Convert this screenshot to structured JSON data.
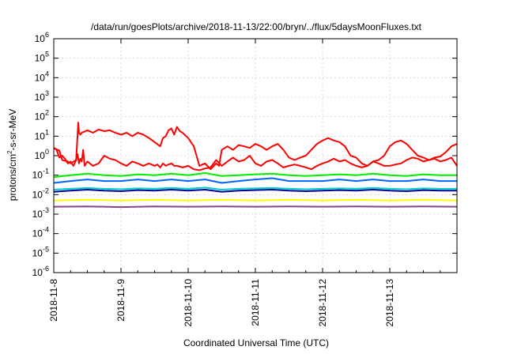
{
  "chart_data": {
    "type": "line",
    "title": "/data/run/goesPlots/archive/2018-11-13/22:00/bryn/../flux/5daysMoonFluxes.txt",
    "xlabel": "Coordinated Universal Time (UTC)",
    "ylabel": {
      "base": "protons/cm",
      "sup": "2",
      "rest": "-s-sr-MeV"
    },
    "y_scale": "log",
    "ylim": [
      1e-06,
      1000000.0
    ],
    "y_ticks": [
      {
        "value": 1e-06,
        "label": "10",
        "exp": "-6"
      },
      {
        "value": 1e-05,
        "label": "10",
        "exp": "-5"
      },
      {
        "value": 0.0001,
        "label": "10",
        "exp": "-4"
      },
      {
        "value": 0.001,
        "label": "10",
        "exp": "-3"
      },
      {
        "value": 0.01,
        "label": "10",
        "exp": "-2"
      },
      {
        "value": 0.1,
        "label": "10",
        "exp": "-1"
      },
      {
        "value": 1,
        "label": "10",
        "exp": "0"
      },
      {
        "value": 10,
        "label": "10",
        "exp": "1"
      },
      {
        "value": 100,
        "label": "10",
        "exp": "2"
      },
      {
        "value": 1000,
        "label": "10",
        "exp": "3"
      },
      {
        "value": 10000,
        "label": "10",
        "exp": "4"
      },
      {
        "value": 100000,
        "label": "10",
        "exp": "5"
      },
      {
        "value": 1000000,
        "label": "10",
        "exp": "6"
      }
    ],
    "xlim": [
      "2018-11-08T00:00",
      "2018-11-14T00:00"
    ],
    "x_ticks": [
      "2018-11-8",
      "2018-11-9",
      "2018-11-10",
      "2018-11-11",
      "2018-11-12",
      "2018-11-13"
    ],
    "grid": true,
    "legend": "none",
    "series": [
      {
        "color": "#ff0000",
        "x": [
          "2018-11-08T00:00",
          "2018-11-08T02:00",
          "2018-11-08T03:00",
          "2018-11-08T05:00",
          "2018-11-08T06:00",
          "2018-11-08T08:00",
          "2018-11-08T08:30",
          "2018-11-08T09:00",
          "2018-11-08T09:30",
          "2018-11-08T10:00",
          "2018-11-08T10:30",
          "2018-11-08T11:00",
          "2018-11-08T12:00",
          "2018-11-08T14:00",
          "2018-11-08T16:00",
          "2018-11-08T18:00",
          "2018-11-08T20:00",
          "2018-11-08T22:00",
          "2018-11-09T00:00",
          "2018-11-09T02:00",
          "2018-11-09T04:00",
          "2018-11-09T06:00",
          "2018-11-09T08:00",
          "2018-11-09T10:00",
          "2018-11-09T12:00",
          "2018-11-09T13:00",
          "2018-11-09T14:00",
          "2018-11-09T15:00",
          "2018-11-09T16:00",
          "2018-11-09T17:00",
          "2018-11-09T18:00",
          "2018-11-09T19:00",
          "2018-11-09T20:00",
          "2018-11-09T22:00",
          "2018-11-10T00:00",
          "2018-11-10T02:00",
          "2018-11-10T04:00",
          "2018-11-10T06:00",
          "2018-11-10T08:00",
          "2018-11-10T10:00",
          "2018-11-10T12:00",
          "2018-11-10T14:00",
          "2018-11-10T16:00",
          "2018-11-10T18:00",
          "2018-11-10T20:00",
          "2018-11-10T22:00",
          "2018-11-11T00:00",
          "2018-11-11T02:00",
          "2018-11-11T04:00",
          "2018-11-11T06:00",
          "2018-11-11T08:00",
          "2018-11-11T10:00",
          "2018-11-11T12:00",
          "2018-11-11T14:00",
          "2018-11-11T16:00",
          "2018-11-11T18:00",
          "2018-11-11T20:00",
          "2018-11-11T22:00",
          "2018-11-12T00:00",
          "2018-11-12T02:00",
          "2018-11-12T04:00",
          "2018-11-12T06:00",
          "2018-11-12T08:00",
          "2018-11-12T10:00",
          "2018-11-12T12:00",
          "2018-11-12T14:00",
          "2018-11-12T16:00",
          "2018-11-12T18:00",
          "2018-11-12T20:00",
          "2018-11-12T22:00",
          "2018-11-13T00:00",
          "2018-11-13T02:00",
          "2018-11-13T04:00",
          "2018-11-13T06:00",
          "2018-11-13T08:00",
          "2018-11-13T10:00",
          "2018-11-13T12:00",
          "2018-11-13T14:00",
          "2018-11-13T16:00",
          "2018-11-13T18:00",
          "2018-11-13T20:00",
          "2018-11-13T22:00",
          "2018-11-14T00:00"
        ],
        "values": [
          2.5,
          1.8,
          0.6,
          0.5,
          0.4,
          0.6,
          1.2,
          0.4,
          0.7,
          0.5,
          2.0,
          0.3,
          0.5,
          0.3,
          0.4,
          1.0,
          0.7,
          0.6,
          0.4,
          0.3,
          0.5,
          0.4,
          0.3,
          0.4,
          0.3,
          0.35,
          0.25,
          0.4,
          0.3,
          0.35,
          0.4,
          0.3,
          0.3,
          0.25,
          0.3,
          0.2,
          0.18,
          0.22,
          0.25,
          0.6,
          0.3,
          0.5,
          0.8,
          0.5,
          0.6,
          1.0,
          0.4,
          0.3,
          0.5,
          0.6,
          0.4,
          0.25,
          0.3,
          0.35,
          0.3,
          0.25,
          0.2,
          0.3,
          0.4,
          0.5,
          0.7,
          0.5,
          0.6,
          0.4,
          0.3,
          0.25,
          0.3,
          0.5,
          0.4,
          0.3,
          0.3,
          0.35,
          0.4,
          0.6,
          0.8,
          0.7,
          0.5,
          0.6,
          0.7,
          0.5,
          0.6,
          0.8,
          0.3
        ]
      },
      {
        "color": "#ff0000",
        "x": [
          "2018-11-08T00:00",
          "2018-11-08T01:00",
          "2018-11-08T02:00",
          "2018-11-08T03:00",
          "2018-11-08T04:00",
          "2018-11-08T05:00",
          "2018-11-08T06:00",
          "2018-11-08T07:00",
          "2018-11-08T08:00",
          "2018-11-08T08:45",
          "2018-11-08T09:00",
          "2018-11-08T09:30",
          "2018-11-08T10:00",
          "2018-11-08T12:00",
          "2018-11-08T14:00",
          "2018-11-08T16:00",
          "2018-11-08T18:00",
          "2018-11-08T20:00",
          "2018-11-08T22:00",
          "2018-11-09T00:00",
          "2018-11-09T02:00",
          "2018-11-09T04:00",
          "2018-11-09T06:00",
          "2018-11-09T08:00",
          "2018-11-09T10:00",
          "2018-11-09T12:00",
          "2018-11-09T14:00",
          "2018-11-09T15:00",
          "2018-11-09T16:00",
          "2018-11-09T17:00",
          "2018-11-09T18:00",
          "2018-11-09T19:00",
          "2018-11-09T20:00",
          "2018-11-09T21:00",
          "2018-11-09T22:00",
          "2018-11-10T00:00",
          "2018-11-10T02:00",
          "2018-11-10T03:00",
          "2018-11-10T04:00",
          "2018-11-10T06:00",
          "2018-11-10T08:00",
          "2018-11-10T10:00",
          "2018-11-10T11:00",
          "2018-11-10T12:00",
          "2018-11-10T14:00",
          "2018-11-10T16:00",
          "2018-11-10T18:00",
          "2018-11-10T20:00",
          "2018-11-10T22:00",
          "2018-11-11T00:00",
          "2018-11-11T02:00",
          "2018-11-11T04:00",
          "2018-11-11T06:00",
          "2018-11-11T08:00",
          "2018-11-11T10:00",
          "2018-11-11T12:00",
          "2018-11-11T14:00",
          "2018-11-11T16:00",
          "2018-11-11T18:00",
          "2018-11-11T20:00",
          "2018-11-11T22:00",
          "2018-11-12T00:00",
          "2018-11-12T02:00",
          "2018-11-12T04:00",
          "2018-11-12T06:00",
          "2018-11-12T08:00",
          "2018-11-12T10:00",
          "2018-11-12T12:00",
          "2018-11-12T14:00",
          "2018-11-12T16:00",
          "2018-11-12T18:00",
          "2018-11-12T20:00",
          "2018-11-12T22:00",
          "2018-11-13T00:00",
          "2018-11-13T02:00",
          "2018-11-13T04:00",
          "2018-11-13T06:00",
          "2018-11-13T08:00",
          "2018-11-13T10:00",
          "2018-11-13T12:00",
          "2018-11-13T14:00",
          "2018-11-13T16:00",
          "2018-11-13T18:00",
          "2018-11-13T20:00",
          "2018-11-13T22:00",
          "2018-11-14T00:00"
        ],
        "values": [
          2.5,
          2.0,
          0.8,
          1.0,
          0.7,
          0.4,
          0.5,
          0.3,
          0.6,
          50,
          15,
          12,
          15,
          20,
          15,
          22,
          18,
          20,
          15,
          12,
          15,
          10,
          15,
          12,
          8,
          5,
          3,
          8,
          10,
          20,
          25,
          12,
          30,
          18,
          15,
          8,
          3,
          1,
          0.3,
          0.4,
          0.2,
          0.4,
          0.3,
          2,
          3,
          2,
          3.5,
          3,
          2.5,
          4,
          3,
          2,
          3,
          4,
          2,
          0.8,
          0.6,
          0.8,
          1,
          2,
          4,
          6,
          8,
          6,
          5,
          3,
          1,
          0.8,
          0.4,
          0.3,
          0.5,
          0.6,
          1,
          3,
          5,
          6,
          4,
          2,
          1,
          0.8,
          0.6,
          0.8,
          0.9,
          1.5,
          3,
          4
        ]
      },
      {
        "color": "#00ee00",
        "x": [
          "2018-11-08T00:00",
          "2018-11-08T06:00",
          "2018-11-08T12:00",
          "2018-11-08T18:00",
          "2018-11-09T00:00",
          "2018-11-09T06:00",
          "2018-11-09T12:00",
          "2018-11-09T18:00",
          "2018-11-10T00:00",
          "2018-11-10T06:00",
          "2018-11-10T12:00",
          "2018-11-10T18:00",
          "2018-11-11T00:00",
          "2018-11-11T06:00",
          "2018-11-11T12:00",
          "2018-11-11T18:00",
          "2018-11-12T00:00",
          "2018-11-12T06:00",
          "2018-11-12T12:00",
          "2018-11-12T18:00",
          "2018-11-13T00:00",
          "2018-11-13T06:00",
          "2018-11-13T12:00",
          "2018-11-13T18:00",
          "2018-11-14T00:00"
        ],
        "values": [
          0.08,
          0.1,
          0.12,
          0.1,
          0.09,
          0.11,
          0.1,
          0.12,
          0.1,
          0.13,
          0.09,
          0.1,
          0.11,
          0.12,
          0.1,
          0.09,
          0.1,
          0.11,
          0.1,
          0.12,
          0.1,
          0.09,
          0.11,
          0.1,
          0.1
        ]
      },
      {
        "color": "#0066ff",
        "x": [
          "2018-11-08T00:00",
          "2018-11-08T06:00",
          "2018-11-08T12:00",
          "2018-11-08T18:00",
          "2018-11-09T00:00",
          "2018-11-09T06:00",
          "2018-11-09T12:00",
          "2018-11-09T18:00",
          "2018-11-10T00:00",
          "2018-11-10T06:00",
          "2018-11-10T12:00",
          "2018-11-10T18:00",
          "2018-11-11T00:00",
          "2018-11-11T06:00",
          "2018-11-11T12:00",
          "2018-11-11T18:00",
          "2018-11-12T00:00",
          "2018-11-12T06:00",
          "2018-11-12T12:00",
          "2018-11-12T18:00",
          "2018-11-13T00:00",
          "2018-11-13T06:00",
          "2018-11-13T12:00",
          "2018-11-13T18:00",
          "2018-11-14T00:00"
        ],
        "values": [
          0.04,
          0.05,
          0.06,
          0.05,
          0.05,
          0.06,
          0.05,
          0.06,
          0.05,
          0.06,
          0.04,
          0.05,
          0.06,
          0.07,
          0.05,
          0.05,
          0.05,
          0.06,
          0.05,
          0.06,
          0.05,
          0.05,
          0.06,
          0.05,
          0.05
        ]
      },
      {
        "color": "#00cccc",
        "x": [
          "2018-11-08T00:00",
          "2018-11-08T06:00",
          "2018-11-08T12:00",
          "2018-11-08T18:00",
          "2018-11-09T00:00",
          "2018-11-09T06:00",
          "2018-11-09T12:00",
          "2018-11-09T18:00",
          "2018-11-10T00:00",
          "2018-11-10T06:00",
          "2018-11-10T12:00",
          "2018-11-10T18:00",
          "2018-11-11T00:00",
          "2018-11-11T06:00",
          "2018-11-11T12:00",
          "2018-11-11T18:00",
          "2018-11-12T00:00",
          "2018-11-12T06:00",
          "2018-11-12T12:00",
          "2018-11-12T18:00",
          "2018-11-13T00:00",
          "2018-11-13T06:00",
          "2018-11-13T12:00",
          "2018-11-13T18:00",
          "2018-11-14T00:00"
        ],
        "values": [
          0.018,
          0.02,
          0.022,
          0.02,
          0.019,
          0.021,
          0.02,
          0.022,
          0.02,
          0.023,
          0.018,
          0.02,
          0.021,
          0.022,
          0.02,
          0.019,
          0.02,
          0.021,
          0.02,
          0.022,
          0.02,
          0.019,
          0.021,
          0.02,
          0.02
        ]
      },
      {
        "color": "#000099",
        "x": [
          "2018-11-08T00:00",
          "2018-11-08T06:00",
          "2018-11-08T12:00",
          "2018-11-08T18:00",
          "2018-11-09T00:00",
          "2018-11-09T06:00",
          "2018-11-09T12:00",
          "2018-11-09T18:00",
          "2018-11-10T00:00",
          "2018-11-10T06:00",
          "2018-11-10T12:00",
          "2018-11-10T18:00",
          "2018-11-11T00:00",
          "2018-11-11T06:00",
          "2018-11-11T12:00",
          "2018-11-11T18:00",
          "2018-11-12T00:00",
          "2018-11-12T06:00",
          "2018-11-12T12:00",
          "2018-11-12T18:00",
          "2018-11-13T00:00",
          "2018-11-13T06:00",
          "2018-11-13T12:00",
          "2018-11-13T18:00",
          "2018-11-14T00:00"
        ],
        "values": [
          0.014,
          0.016,
          0.018,
          0.016,
          0.015,
          0.017,
          0.016,
          0.018,
          0.016,
          0.018,
          0.014,
          0.016,
          0.017,
          0.018,
          0.016,
          0.015,
          0.016,
          0.017,
          0.016,
          0.018,
          0.016,
          0.015,
          0.017,
          0.016,
          0.016
        ]
      },
      {
        "color": "#ffff00",
        "x": [
          "2018-11-08T00:00",
          "2018-11-08T12:00",
          "2018-11-09T00:00",
          "2018-11-09T12:00",
          "2018-11-10T00:00",
          "2018-11-10T12:00",
          "2018-11-11T00:00",
          "2018-11-11T12:00",
          "2018-11-12T00:00",
          "2018-11-12T12:00",
          "2018-11-13T00:00",
          "2018-11-13T12:00",
          "2018-11-14T00:00"
        ],
        "values": [
          0.005,
          0.0055,
          0.005,
          0.0055,
          0.005,
          0.0055,
          0.005,
          0.0055,
          0.005,
          0.0055,
          0.005,
          0.0055,
          0.005
        ]
      },
      {
        "color": "#884488",
        "x": [
          "2018-11-08T00:00",
          "2018-11-08T12:00",
          "2018-11-09T00:00",
          "2018-11-09T12:00",
          "2018-11-10T00:00",
          "2018-11-10T12:00",
          "2018-11-11T00:00",
          "2018-11-11T12:00",
          "2018-11-12T00:00",
          "2018-11-12T12:00",
          "2018-11-13T00:00",
          "2018-11-13T12:00",
          "2018-11-14T00:00"
        ],
        "values": [
          0.0024,
          0.0025,
          0.0023,
          0.0025,
          0.0024,
          0.0025,
          0.0024,
          0.0025,
          0.0024,
          0.0025,
          0.0024,
          0.0025,
          0.0024
        ]
      }
    ]
  }
}
